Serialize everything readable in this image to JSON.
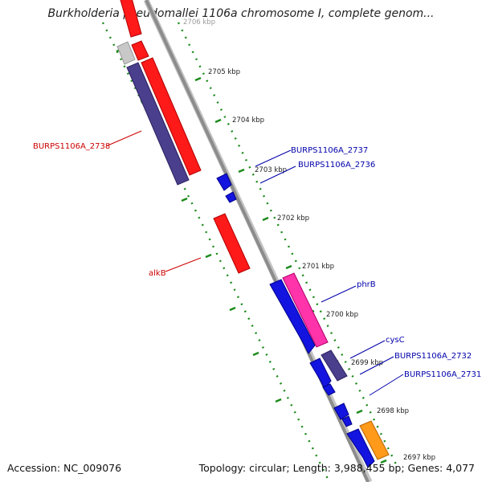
{
  "title": "Burkholderia pseudomallei 1106a chromosome I, complete genom...",
  "footer": {
    "accession": "Accession: NC_009076",
    "summary": "Topology: circular; Length: 3,988,455 bp; Genes: 4,077"
  },
  "colors": {
    "backbone": "#8c8c8c",
    "tick": "#1a8a1a",
    "label_forward": "#cc0000",
    "label_reverse": "#0000aa",
    "forward_cds": "#ff1a1a",
    "reverse_cds": "#1414e0",
    "other_gene": "#4a3f8c",
    "rna": "#ff33aa",
    "pseudo": "#c8c8c8",
    "misc": "#ff9a1a"
  },
  "scale_labels": [
    "2706 kbp",
    "2705 kbp",
    "2704 kbp",
    "2703 kbp",
    "2702 kbp",
    "2701 kbp",
    "2700 kbp",
    "2699 kbp",
    "2698 kbp",
    "2697 kbp"
  ],
  "gene_labels": {
    "forward": [
      "BURPS1106A_2738",
      "alkB"
    ],
    "reverse": [
      "BURPS1106A_2737",
      "BURPS1106A_2736",
      "phrB",
      "cysC",
      "BURPS1106A_2732",
      "BURPS1106A_2731"
    ]
  }
}
